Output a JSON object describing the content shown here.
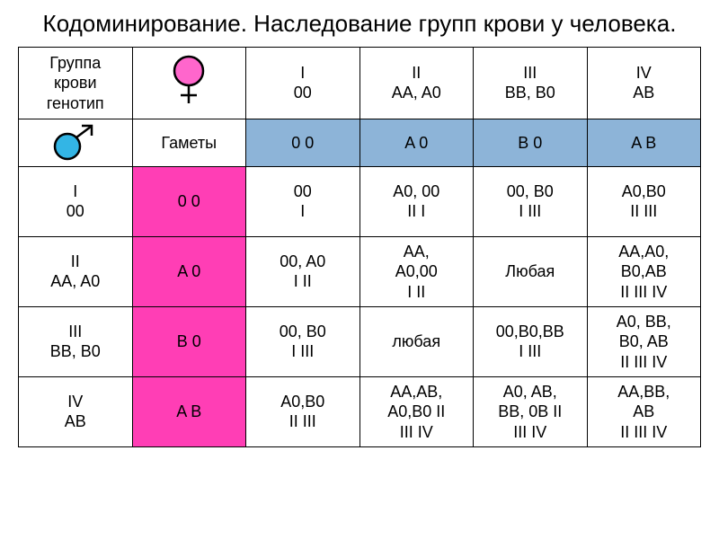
{
  "title": "Кодоминирование. Наследование групп крови у человека.",
  "colors": {
    "blue": "#8db4d8",
    "pink": "#ff3eb5",
    "pink_circle": "#ff66cc",
    "blue_circle": "#33b5e5",
    "black": "#000000",
    "white": "#ffffff"
  },
  "header_label": "Группа\nкрови\nгенотип",
  "gametes_label": "Гаметы",
  "groups": [
    {
      "label": "I\n00",
      "gametes": "0   0"
    },
    {
      "label": "II\nAA, A0",
      "gametes": "A    0"
    },
    {
      "label": "III\nBB, B0",
      "gametes": "B    0"
    },
    {
      "label": "IV\nAB",
      "gametes": "A   B"
    }
  ],
  "rows": [
    {
      "label": "I\n00",
      "gametes": "0   0",
      "cells": [
        "00\nI",
        "A0, 00\nII   I",
        "00, B0\nI   III",
        "A0,B0\nII   III"
      ]
    },
    {
      "label": "II\nAA, A0",
      "gametes": "A    0",
      "cells": [
        "00, A0\nI   II",
        "AA,\nA0,00\nI   II",
        "Любая",
        "AA,A0,\nB0,AB\nII   III   IV"
      ]
    },
    {
      "label": "III\nBB, B0",
      "gametes": "B    0",
      "cells": [
        "00, B0\nI   III",
        "любая",
        "00,B0,BB\nI   III",
        "A0, BB,\nB0, AB\nII   III   IV"
      ]
    },
    {
      "label": "IV\nAB",
      "gametes": "A   B",
      "cells": [
        "A0,B0\nII   III",
        "AA,AB,\nA0,B0  II\nIII  IV",
        "A0, AB,\nBB, 0B  II\nIII  IV",
        "AA,BB,\nAB\nII  III  IV"
      ]
    }
  ],
  "symbols": {
    "female": "female-symbol",
    "male": "male-symbol"
  }
}
